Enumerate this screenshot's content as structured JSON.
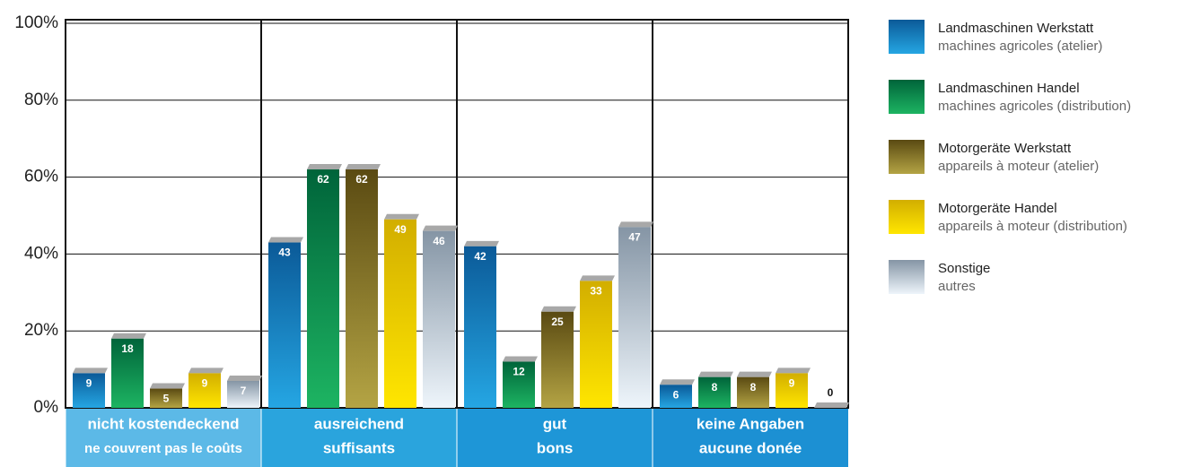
{
  "chart_data": {
    "type": "bar",
    "categories": [
      "nicht kostendeckend",
      "ausreichend",
      "gut",
      "keine Angaben"
    ],
    "categories_fr": [
      "ne couvrent pas le coûts",
      "suffisants",
      "bons",
      "aucune donée"
    ],
    "series": [
      {
        "name": "Landmaschinen Werkstatt",
        "subname": "machines agricoles (atelier)",
        "color": [
          "#0b5a98",
          "#25a6e3"
        ],
        "values": [
          9,
          43,
          42,
          6
        ]
      },
      {
        "name": "Landmaschinen Handel",
        "subname": "machines agricoles (distribution)",
        "color": [
          "#00643a",
          "#1db462"
        ],
        "values": [
          18,
          62,
          12,
          8
        ]
      },
      {
        "name": "Motorgeräte Werkstatt",
        "subname": "appareils à moteur (atelier)",
        "color": [
          "#5a4a12",
          "#b4a444"
        ],
        "values": [
          5,
          62,
          25,
          8
        ]
      },
      {
        "name": "Motorgeräte Handel",
        "subname": "appareils à moteur (distribution)",
        "color": [
          "#d2ae00",
          "#ffe600"
        ],
        "values": [
          9,
          49,
          33,
          9
        ]
      },
      {
        "name": "Sonstige",
        "subname": "autres",
        "color": [
          "#8595a5",
          "#eef5fb"
        ],
        "values": [
          7,
          46,
          47,
          0
        ]
      }
    ],
    "category_colors": [
      "#5cb9e7",
      "#2aa4dd",
      "#1e96d7",
      "#1c90d3"
    ],
    "ylim": [
      0,
      100
    ],
    "yticks": [
      {
        "value": 0,
        "label": "0%"
      },
      {
        "value": 20,
        "label": "20%"
      },
      {
        "value": 40,
        "label": "40%"
      },
      {
        "value": 60,
        "label": "60%"
      },
      {
        "value": 80,
        "label": "80%"
      },
      {
        "value": 100,
        "label": "100%"
      }
    ],
    "grid": true
  }
}
